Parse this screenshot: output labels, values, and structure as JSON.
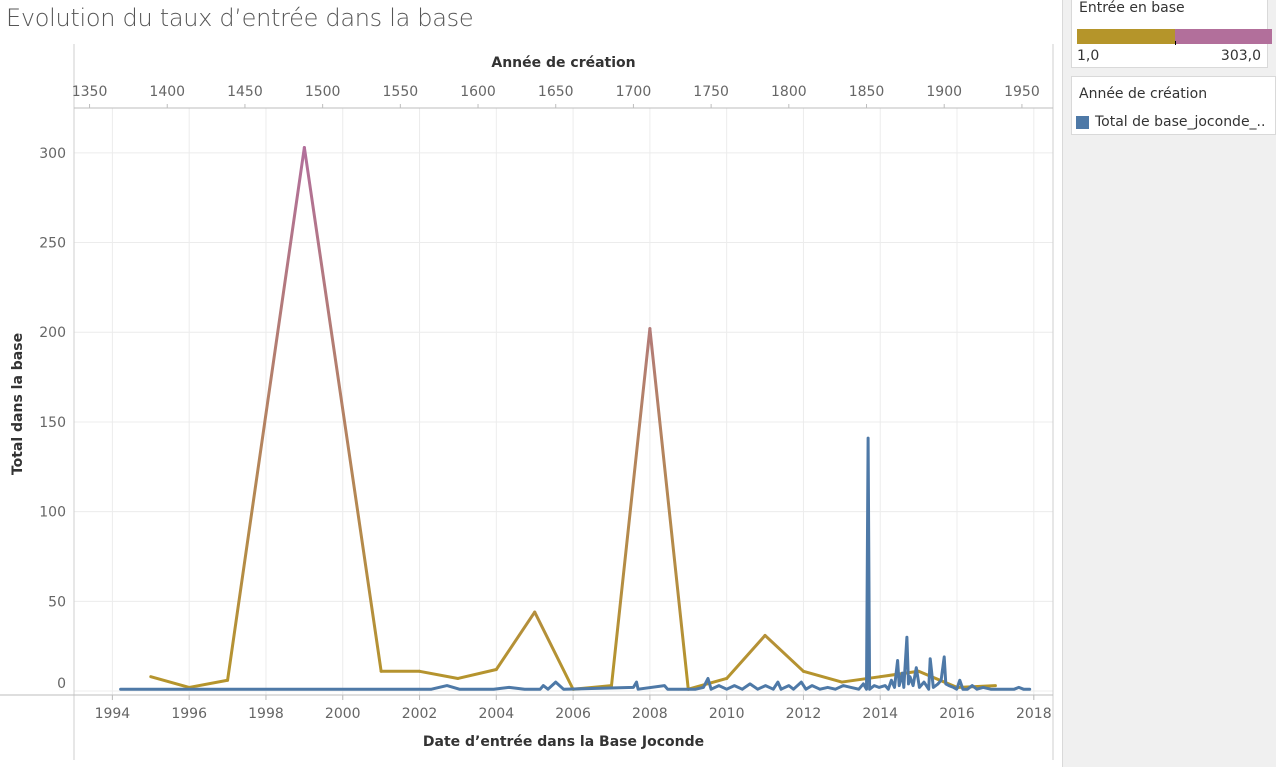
{
  "title": "Evolution du taux d’entrée dans la base",
  "chart_data": {
    "type": "line",
    "top_axis": {
      "label": "Année de création",
      "ticks": [
        1350,
        1400,
        1450,
        1500,
        1550,
        1600,
        1650,
        1700,
        1750,
        1800,
        1850,
        1900,
        1950
      ],
      "range": [
        1340,
        1970
      ]
    },
    "bottom_axis": {
      "label": "Date d’entrée dans la Base Joconde",
      "ticks": [
        1994,
        1996,
        1998,
        2000,
        2002,
        2004,
        2006,
        2008,
        2010,
        2012,
        2014,
        2016,
        2018
      ],
      "range": [
        1993.0,
        2018.5
      ]
    },
    "y_axis": {
      "label": "Total dans la base",
      "ticks": [
        0,
        50,
        100,
        150,
        200,
        250,
        300
      ],
      "range": [
        -5,
        325
      ]
    },
    "grid": true,
    "series": [
      {
        "name": "Entrée en base",
        "axis": "bottom",
        "colored_by_value": true,
        "points": [
          [
            1995,
            8
          ],
          [
            1996,
            2
          ],
          [
            1997,
            6
          ],
          [
            1999,
            303
          ],
          [
            2001,
            11
          ],
          [
            2002,
            11
          ],
          [
            2003,
            7
          ],
          [
            2004,
            12
          ],
          [
            2005,
            44
          ],
          [
            2006,
            1
          ],
          [
            2007,
            3
          ],
          [
            2008,
            202
          ],
          [
            2009,
            1
          ],
          [
            2010,
            7
          ],
          [
            2011,
            31
          ],
          [
            2012,
            11
          ],
          [
            2013,
            5
          ],
          [
            2014,
            8
          ],
          [
            2015,
            11
          ],
          [
            2016,
            2
          ],
          [
            2017,
            3
          ]
        ]
      },
      {
        "name": "Total de base_joconde_..",
        "axis": "top",
        "color": "#4e79a7",
        "points": [
          [
            1370,
            1
          ],
          [
            1500,
            1
          ],
          [
            1570,
            1
          ],
          [
            1580,
            3
          ],
          [
            1588,
            1
          ],
          [
            1610,
            1
          ],
          [
            1620,
            2
          ],
          [
            1630,
            1
          ],
          [
            1640,
            1
          ],
          [
            1642,
            3
          ],
          [
            1645,
            1
          ],
          [
            1650,
            5
          ],
          [
            1655,
            1
          ],
          [
            1700,
            2
          ],
          [
            1702,
            5
          ],
          [
            1703,
            1
          ],
          [
            1720,
            3
          ],
          [
            1722,
            1
          ],
          [
            1740,
            1
          ],
          [
            1745,
            2
          ],
          [
            1748,
            7
          ],
          [
            1750,
            1
          ],
          [
            1755,
            3
          ],
          [
            1760,
            1
          ],
          [
            1765,
            3
          ],
          [
            1770,
            1
          ],
          [
            1775,
            4
          ],
          [
            1780,
            1
          ],
          [
            1785,
            3
          ],
          [
            1790,
            1
          ],
          [
            1793,
            5
          ],
          [
            1795,
            1
          ],
          [
            1800,
            3
          ],
          [
            1803,
            1
          ],
          [
            1808,
            5
          ],
          [
            1811,
            1
          ],
          [
            1815,
            3
          ],
          [
            1820,
            1
          ],
          [
            1825,
            2
          ],
          [
            1830,
            1
          ],
          [
            1835,
            3
          ],
          [
            1840,
            2
          ],
          [
            1845,
            1
          ],
          [
            1848,
            4
          ],
          [
            1850,
            1
          ],
          [
            1851,
            141
          ],
          [
            1852,
            1
          ],
          [
            1855,
            3
          ],
          [
            1858,
            2
          ],
          [
            1862,
            3
          ],
          [
            1864,
            1
          ],
          [
            1866,
            6
          ],
          [
            1868,
            2
          ],
          [
            1870,
            17
          ],
          [
            1871,
            3
          ],
          [
            1873,
            10
          ],
          [
            1874,
            2
          ],
          [
            1876,
            30
          ],
          [
            1877,
            4
          ],
          [
            1878,
            8
          ],
          [
            1880,
            3
          ],
          [
            1882,
            13
          ],
          [
            1884,
            2
          ],
          [
            1887,
            5
          ],
          [
            1890,
            1
          ],
          [
            1891,
            18
          ],
          [
            1893,
            2
          ],
          [
            1896,
            4
          ],
          [
            1898,
            6
          ],
          [
            1900,
            19
          ],
          [
            1901,
            4
          ],
          [
            1903,
            3
          ],
          [
            1906,
            2
          ],
          [
            1908,
            1
          ],
          [
            1910,
            6
          ],
          [
            1912,
            1
          ],
          [
            1915,
            1
          ],
          [
            1918,
            3
          ],
          [
            1921,
            1
          ],
          [
            1925,
            2
          ],
          [
            1930,
            1
          ],
          [
            1933,
            1
          ],
          [
            1940,
            1
          ],
          [
            1945,
            1
          ],
          [
            1948,
            2
          ],
          [
            1951,
            1
          ],
          [
            1955,
            1
          ]
        ]
      }
    ]
  },
  "legend_color": {
    "title": "Entrée en base",
    "min_label": "1,0",
    "max_label": "303,0",
    "low_color": "#b5952a",
    "high_color": "#b26f9b"
  },
  "legend_series": {
    "title": "Année de création",
    "item_label": "Total de base_joconde_..",
    "item_color": "#4e79a7"
  }
}
